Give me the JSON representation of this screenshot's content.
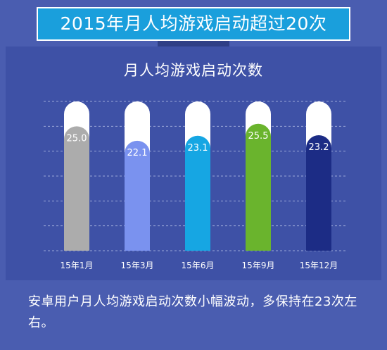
{
  "header": {
    "banner_title": "2015年月人均游戏启动超过20次"
  },
  "chart_data": {
    "type": "bar",
    "title": "月人均游戏启动次数",
    "categories": [
      "15年1月",
      "15年3月",
      "15年6月",
      "15年9月",
      "15年12月"
    ],
    "values": [
      25.0,
      22.1,
      23.1,
      25.5,
      23.2
    ],
    "value_labels": [
      "25.0",
      "22.1",
      "23.1",
      "25.5",
      "23.2"
    ],
    "ylim": [
      0,
      30
    ],
    "grid": true,
    "colors": [
      "#acacac",
      "#7a92ef",
      "#16a6e3",
      "#6ab42d",
      "#1c2c85"
    ],
    "track_color": "#ffffff"
  },
  "footer": {
    "summary": "安卓用户月人均游戏启动次数小幅波动，多保持在23次左右。"
  }
}
